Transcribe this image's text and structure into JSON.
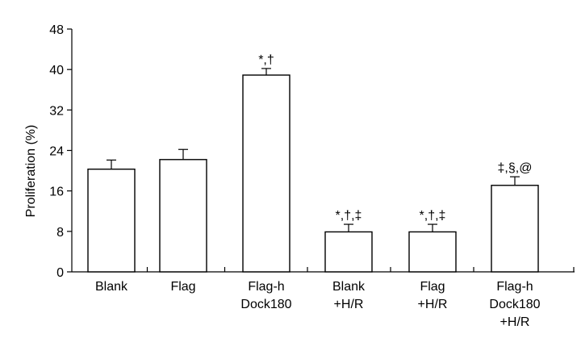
{
  "chart_data": {
    "type": "bar",
    "ylabel": "Proliferation (%)",
    "xlabel": "",
    "ylim": [
      0,
      48
    ],
    "yticks": [
      0,
      8,
      16,
      24,
      32,
      40,
      48
    ],
    "categories": [
      [
        "Blank"
      ],
      [
        "Flag"
      ],
      [
        "Flag-h",
        "Dock180"
      ],
      [
        "Blank",
        "+H/R"
      ],
      [
        "Flag",
        "+H/R"
      ],
      [
        "Flag-h",
        "Dock180",
        "+H/R"
      ]
    ],
    "values": [
      20.3,
      22.2,
      38.9,
      7.9,
      7.9,
      17.1
    ],
    "errors": [
      1.8,
      2.0,
      1.3,
      1.5,
      1.5,
      1.7
    ],
    "annotations": [
      "",
      "",
      "*,†",
      "*,†,‡",
      "*,†,‡",
      "‡,§,@"
    ],
    "grid": false,
    "legend": "none"
  }
}
